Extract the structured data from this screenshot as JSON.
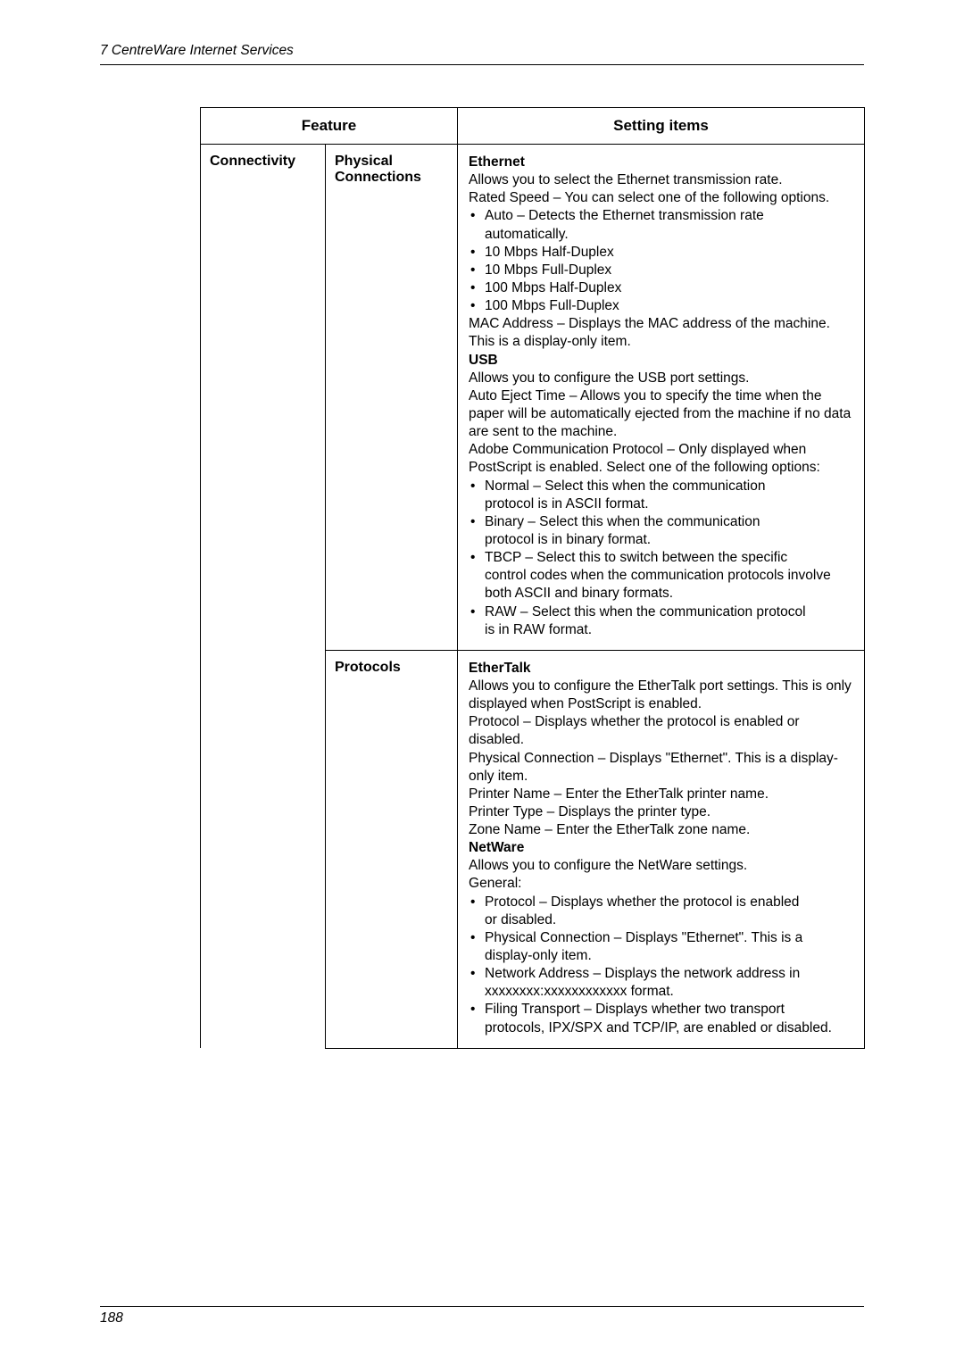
{
  "header": {
    "title": "7  CentreWare Internet Services"
  },
  "footer": {
    "page_num": "188"
  },
  "table": {
    "headers": {
      "feature": "Feature",
      "setting": "Setting items"
    },
    "row1": {
      "col1": "Connectivity",
      "col2": "Physical Connections",
      "ethernet_h": "Ethernet",
      "ethernet_p1": "Allows you to select the Ethernet transmission rate.",
      "ethernet_p2": "Rated Speed – You can select one of the following options.",
      "eth_b1a": "Auto – Detects the Ethernet transmission rate",
      "eth_b1b": "automatically.",
      "eth_b2": "10 Mbps Half-Duplex",
      "eth_b3": "10 Mbps Full-Duplex",
      "eth_b4": "100 Mbps Half-Duplex",
      "eth_b5": "100 Mbps Full-Duplex",
      "mac_p1": "MAC Address – Displays the MAC address of the machine. This is a display-only item.",
      "usb_h": "USB",
      "usb_p1": "Allows you to configure the USB port settings.",
      "usb_p2": "Auto Eject Time – Allows you to specify the time when the paper will be automatically ejected from the machine if no data are sent to the machine.",
      "usb_p3": "Adobe Communication Protocol – Only displayed when PostScript is enabled. Select one of the following options:",
      "usb_b1a": "Normal – Select this when the communication",
      "usb_b1b": "protocol is in ASCII format.",
      "usb_b2a": "Binary – Select this when the communication",
      "usb_b2b": "protocol is in binary format.",
      "usb_b3a": "TBCP – Select this to switch between the specific",
      "usb_b3b": "control codes when the communication protocols involve both ASCII and binary formats.",
      "usb_b4a": "RAW – Select this when the communication protocol",
      "usb_b4b": "is in RAW format."
    },
    "row2": {
      "col2": "Protocols",
      "et_h": "EtherTalk",
      "et_p1": "Allows you to configure the EtherTalk port settings. This is only displayed when PostScript is enabled.",
      "et_p2": "Protocol – Displays whether the protocol is enabled or disabled.",
      "et_p3": "Physical Connection – Displays \"Ethernet\". This is a display-only item.",
      "et_p4": "Printer Name – Enter the EtherTalk printer name.",
      "et_p5": "Printer Type – Displays the printer type.",
      "et_p6": "Zone Name – Enter the EtherTalk zone name.",
      "nw_h": "NetWare",
      "nw_p1": "Allows you to configure the NetWare settings.",
      "nw_p2": "General:",
      "nw_b1a": "Protocol – Displays whether the protocol is enabled",
      "nw_b1b": "or disabled.",
      "nw_b2a": "Physical Connection – Displays \"Ethernet\". This is a",
      "nw_b2b": "display-only item.",
      "nw_b3a": "Network Address – Displays the network address in",
      "nw_b3b": "xxxxxxxx:xxxxxxxxxxxx format.",
      "nw_b4a": "Filing Transport – Displays whether two transport",
      "nw_b4b": "protocols, IPX/SPX and TCP/IP, are enabled or disabled."
    }
  }
}
